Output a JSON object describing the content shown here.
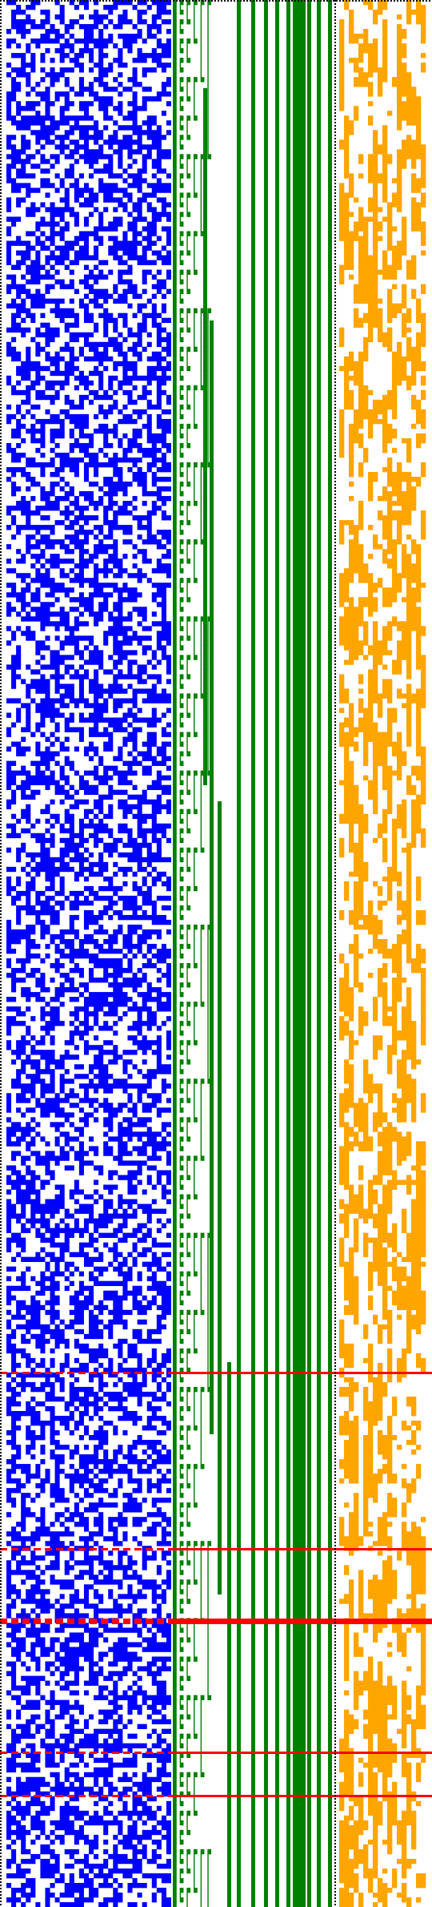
{
  "figure": {
    "kind": "bit-matrix visualization",
    "colors": {
      "background": "#ffffff",
      "left_bits": "#0000ff",
      "staircase": "#008000",
      "stripes": "#008000",
      "right_bits": "#ffa500",
      "separators": "#ff0000",
      "dotted_borders": "#000000"
    },
    "rows": 396,
    "left_bits_columns": 34,
    "staircase_columns": 6,
    "right_bits_columns": 18,
    "vertical_stripe_count": 10,
    "thick_stripe_count": 1,
    "separator_row_count": 6,
    "thick_separator_count": 1,
    "seed": 12345
  }
}
